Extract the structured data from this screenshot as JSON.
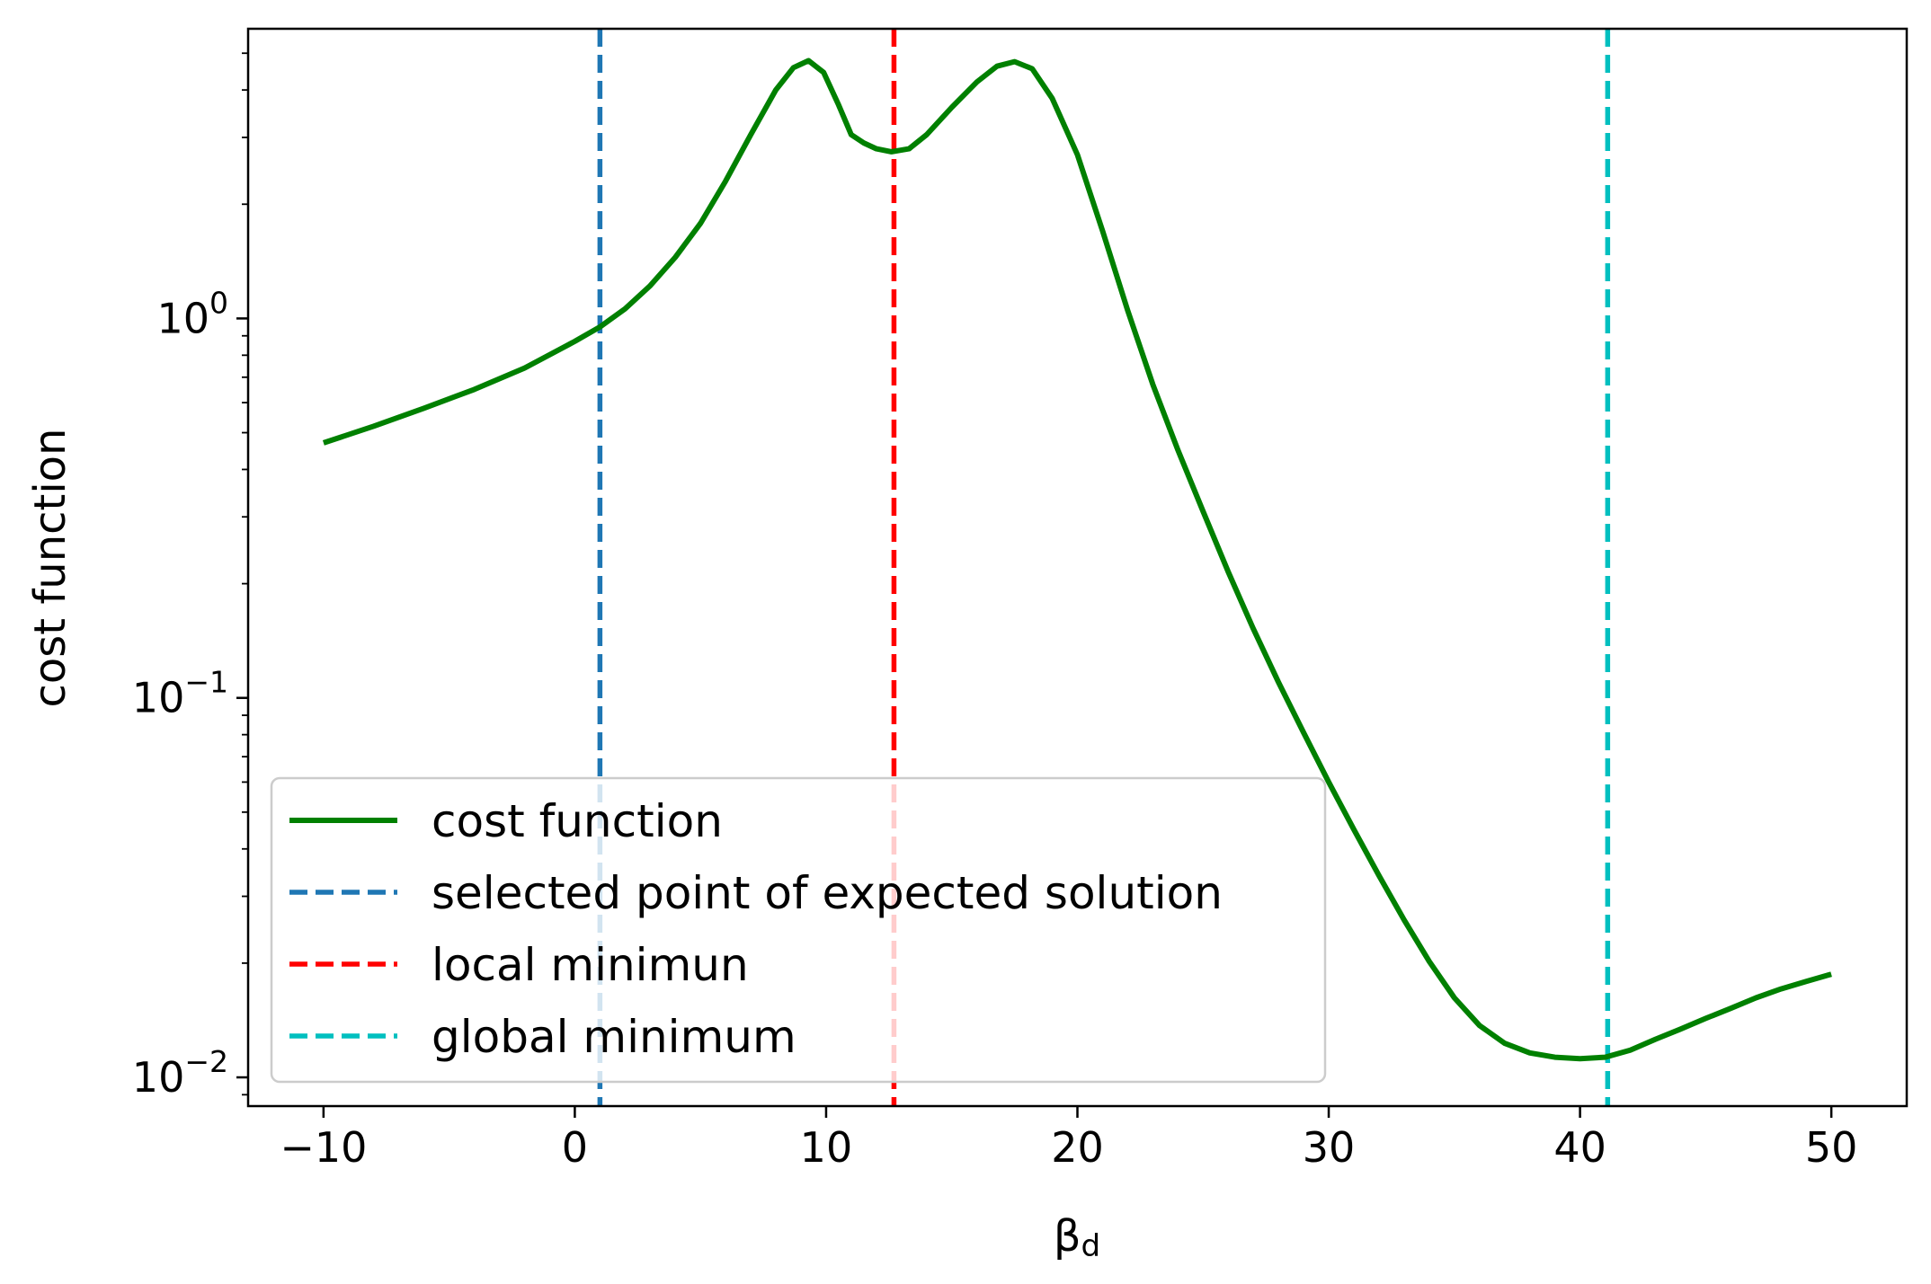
{
  "chart_data": {
    "type": "line",
    "title": "",
    "xlabel": "β",
    "xlabel_subscript": "d",
    "ylabel": "cost function",
    "yscale": "log",
    "xlim": [
      -13,
      53
    ],
    "ylim": [
      0.0084,
      5.8
    ],
    "grid": false,
    "legend_position": "lower-left",
    "x_ticks": [
      {
        "value": -10,
        "label": "−10"
      },
      {
        "value": 0,
        "label": "0"
      },
      {
        "value": 10,
        "label": "10"
      },
      {
        "value": 20,
        "label": "20"
      },
      {
        "value": 30,
        "label": "30"
      },
      {
        "value": 40,
        "label": "40"
      },
      {
        "value": 50,
        "label": "50"
      }
    ],
    "y_ticks": [
      {
        "value": 1,
        "base": "10",
        "exponent": "0"
      },
      {
        "value": 0.1,
        "base": "10",
        "exponent": "−1"
      },
      {
        "value": 0.01,
        "base": "10",
        "exponent": "−2"
      }
    ],
    "series": [
      {
        "name": "cost function",
        "color": "#008000",
        "style": "solid",
        "x": [
          -10,
          -8,
          -6,
          -4,
          -2,
          0,
          1,
          2,
          3,
          4,
          5,
          6,
          7,
          8,
          8.7,
          9.3,
          9.9,
          10.5,
          11,
          11.5,
          12,
          12.6,
          13.3,
          14,
          15,
          16,
          16.8,
          17.5,
          18.2,
          19,
          20,
          21,
          22,
          23,
          24,
          25,
          26,
          27,
          28,
          29,
          30,
          31,
          32,
          33,
          34,
          35,
          36,
          37,
          38,
          39,
          40,
          41,
          42,
          43,
          44,
          45,
          46,
          47,
          48,
          49,
          50
        ],
        "values": [
          0.47,
          0.52,
          0.58,
          0.65,
          0.74,
          0.87,
          0.95,
          1.06,
          1.22,
          1.45,
          1.78,
          2.3,
          3.05,
          4.0,
          4.58,
          4.78,
          4.45,
          3.65,
          3.05,
          2.9,
          2.8,
          2.75,
          2.8,
          3.05,
          3.6,
          4.2,
          4.62,
          4.75,
          4.55,
          3.8,
          2.7,
          1.7,
          1.05,
          0.67,
          0.45,
          0.31,
          0.215,
          0.152,
          0.11,
          0.081,
          0.06,
          0.045,
          0.034,
          0.026,
          0.0202,
          0.0162,
          0.0137,
          0.0123,
          0.0116,
          0.0113,
          0.0112,
          0.0113,
          0.0118,
          0.0126,
          0.0134,
          0.0143,
          0.0152,
          0.0162,
          0.0171,
          0.0179,
          0.0187
        ]
      },
      {
        "name": "selected point of expected solution",
        "color": "#1f77b4",
        "style": "dashed",
        "x_vline": 1
      },
      {
        "name": "local minimun",
        "color": "#ff0000",
        "style": "dashed",
        "x_vline": 12.7
      },
      {
        "name": "global minimum",
        "color": "#00bfbf",
        "style": "dashed",
        "x_vline": 41.1
      }
    ]
  }
}
